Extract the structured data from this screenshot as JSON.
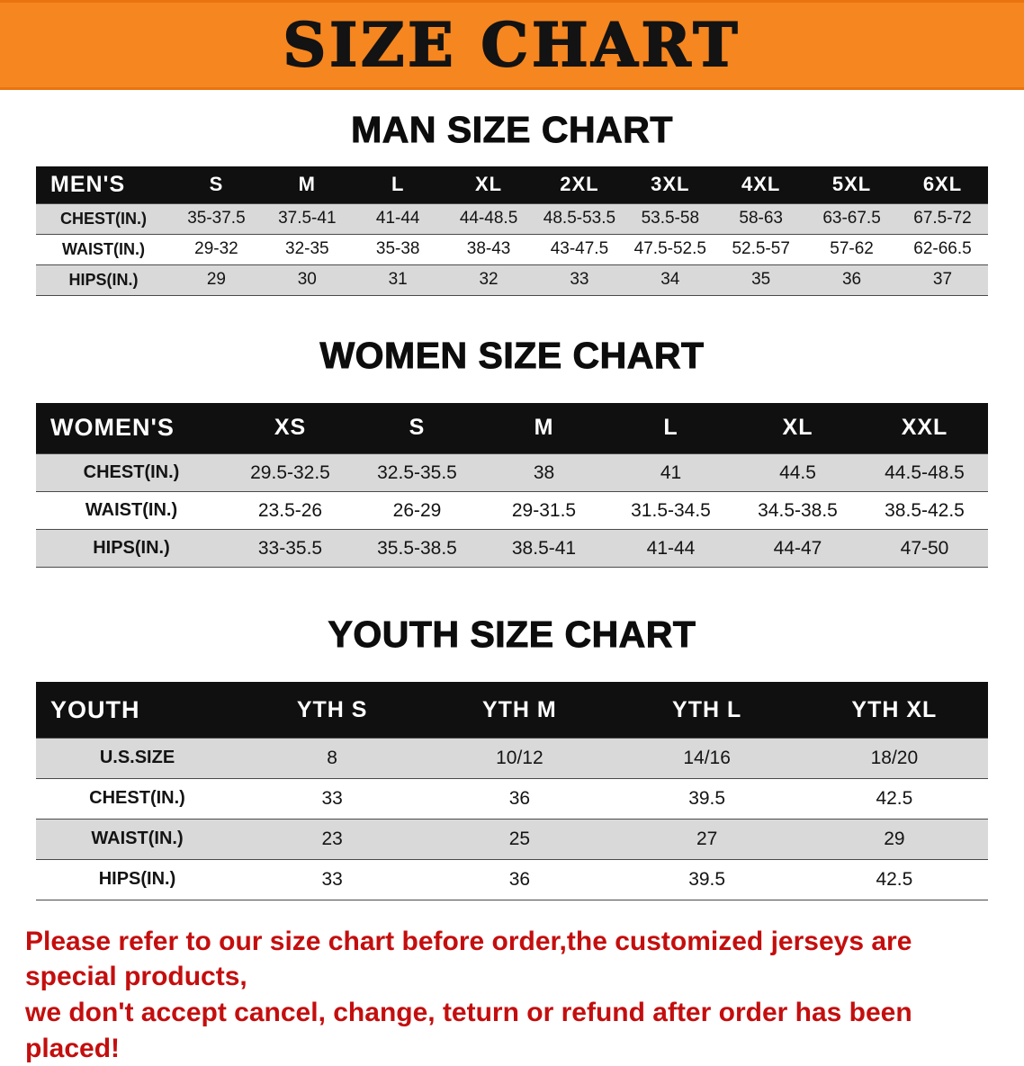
{
  "banner": {
    "title": "SIZE CHART",
    "bg_color": "#f6861f"
  },
  "sections": [
    {
      "heading": "MAN SIZE CHART",
      "table": {
        "label": "MEN'S",
        "sizes": [
          "S",
          "M",
          "L",
          "XL",
          "2XL",
          "3XL",
          "4XL",
          "5XL",
          "6XL"
        ],
        "rows": [
          {
            "label": "CHEST(IN.)",
            "values": [
              "35-37.5",
              "37.5-41",
              "41-44",
              "44-48.5",
              "48.5-53.5",
              "53.5-58",
              "58-63",
              "63-67.5",
              "67.5-72"
            ]
          },
          {
            "label": "WAIST(IN.)",
            "values": [
              "29-32",
              "32-35",
              "35-38",
              "38-43",
              "43-47.5",
              "47.5-52.5",
              "52.5-57",
              "57-62",
              "62-66.5"
            ]
          },
          {
            "label": "HIPS(IN.)",
            "values": [
              "29",
              "30",
              "31",
              "32",
              "33",
              "34",
              "35",
              "36",
              "37"
            ]
          }
        ]
      }
    },
    {
      "heading": "WOMEN SIZE CHART",
      "table": {
        "label": "WOMEN'S",
        "sizes": [
          "XS",
          "S",
          "M",
          "L",
          "XL",
          "XXL"
        ],
        "rows": [
          {
            "label": "CHEST(IN.)",
            "values": [
              "29.5-32.5",
              "32.5-35.5",
              "38",
              "41",
              "44.5",
              "44.5-48.5"
            ]
          },
          {
            "label": "WAIST(IN.)",
            "values": [
              "23.5-26",
              "26-29",
              "29-31.5",
              "31.5-34.5",
              "34.5-38.5",
              "38.5-42.5"
            ]
          },
          {
            "label": "HIPS(IN.)",
            "values": [
              "33-35.5",
              "35.5-38.5",
              "38.5-41",
              "41-44",
              "44-47",
              "47-50"
            ]
          }
        ]
      }
    },
    {
      "heading": "YOUTH SIZE CHART",
      "table": {
        "label": "YOUTH",
        "sizes": [
          "YTH S",
          "YTH M",
          "YTH L",
          "YTH XL"
        ],
        "rows": [
          {
            "label": "U.S.SIZE",
            "values": [
              "8",
              "10/12",
              "14/16",
              "18/20"
            ]
          },
          {
            "label": "CHEST(IN.)",
            "values": [
              "33",
              "36",
              "39.5",
              "42.5"
            ]
          },
          {
            "label": "WAIST(IN.)",
            "values": [
              "23",
              "25",
              "27",
              "29"
            ]
          },
          {
            "label": "HIPS(IN.)",
            "values": [
              "33",
              "36",
              "39.5",
              "42.5"
            ]
          }
        ]
      }
    }
  ],
  "footer": {
    "color": "#c40e0e",
    "lines": [
      "Please refer to our size chart before order,the customized jerseys are special products,",
      "we don't accept cancel, change, teturn or refund after order has been placed!"
    ]
  }
}
